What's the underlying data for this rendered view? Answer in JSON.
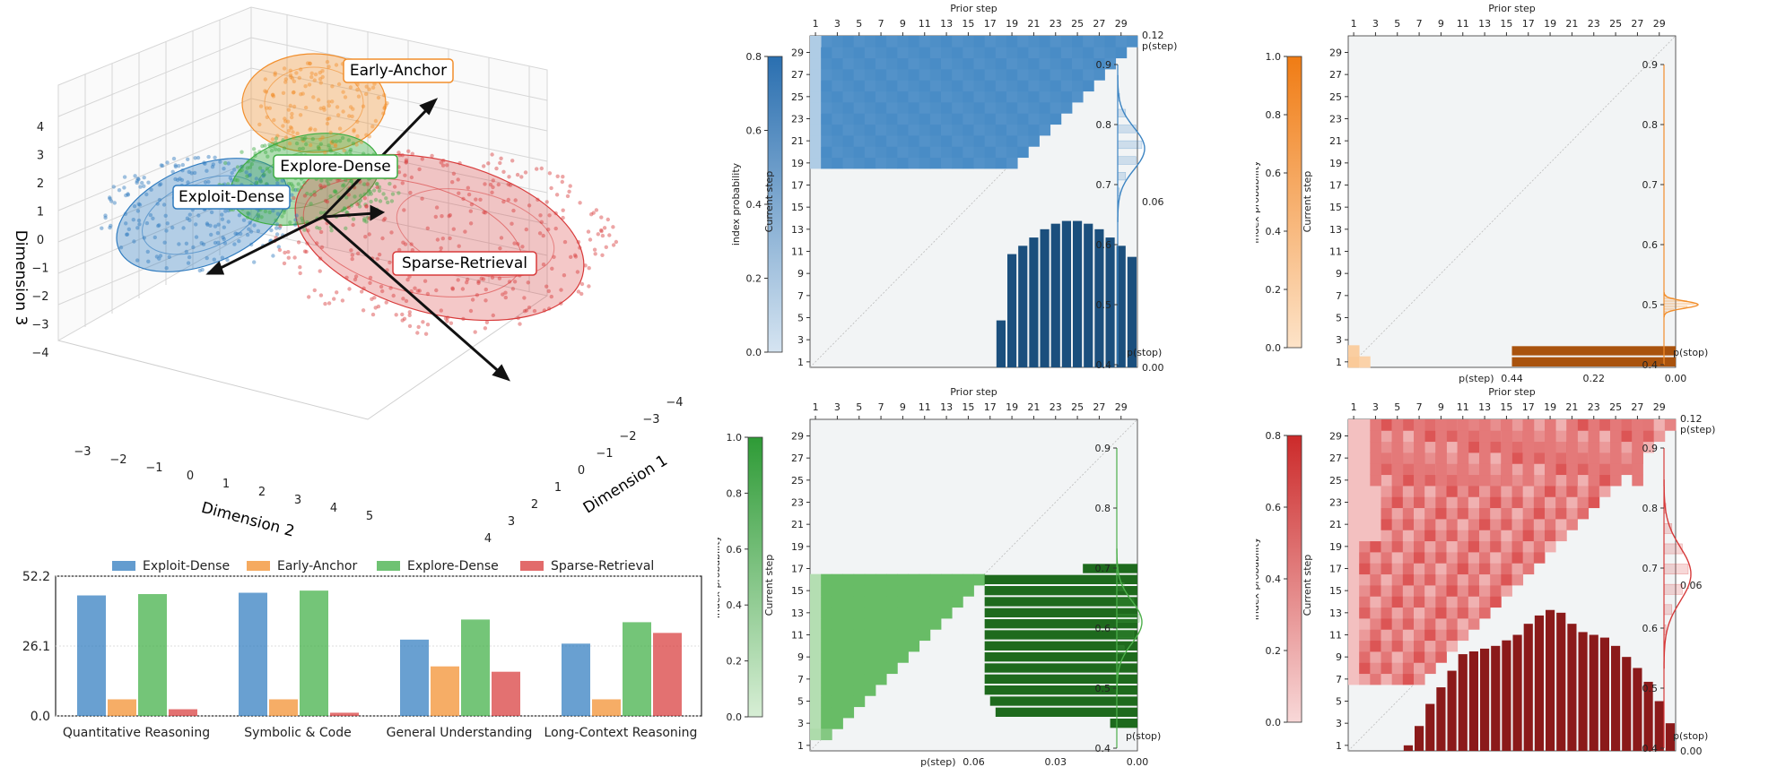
{
  "palette": {
    "exploit": "#2f7bbf",
    "early": "#f28e2b",
    "explore": "#3fae44",
    "sparse": "#d83a3a",
    "grid_bg": "#f2f4f5"
  },
  "scatter3d": {
    "labels": [
      "Early-Anchor",
      "Explore-Dense",
      "Exploit-Dense",
      "Sparse-Retrieval"
    ],
    "axis1_label": "Dimension 1",
    "axis2_label": "Dimension 2",
    "axis3_label": "Dimension 3",
    "z_ticks": [
      "4",
      "3",
      "2",
      "1",
      "0",
      "−1",
      "−2",
      "−3",
      "−4"
    ],
    "x2_ticks": [
      "−3",
      "−2",
      "−1",
      "0",
      "1",
      "2",
      "3",
      "4",
      "5"
    ],
    "x1_ticks": [
      "−4",
      "−3",
      "−2",
      "−1",
      "0",
      "1",
      "2",
      "3",
      "4"
    ]
  },
  "chart_data": [
    {
      "type": "bar",
      "legend": [
        "Exploit-Dense",
        "Early-Anchor",
        "Explore-Dense",
        "Sparse-Retrieval"
      ],
      "categories": [
        "Quantitative Reasoning",
        "Symbolic & Code",
        "General Understanding",
        "Long-Context Reasoning"
      ],
      "yticks": [
        "52.2",
        "26.1",
        "0.0"
      ],
      "ylim": [
        0,
        52.2
      ],
      "series": [
        {
          "name": "Exploit-Dense",
          "values": [
            45.0,
            46.0,
            28.5,
            27.0
          ]
        },
        {
          "name": "Early-Anchor",
          "values": [
            6.2,
            6.2,
            18.5,
            6.2
          ]
        },
        {
          "name": "Explore-Dense",
          "values": [
            45.5,
            46.8,
            36.0,
            35.0
          ]
        },
        {
          "name": "Sparse-Retrieval",
          "values": [
            2.5,
            1.2,
            16.5,
            31.0
          ]
        }
      ]
    },
    {
      "type": "heatmap",
      "cluster": "Exploit-Dense",
      "top_label": "Prior step",
      "left_label": "Current step",
      "colorbar_label": "index probability",
      "colorbar_ticks": [
        "0.8",
        "0.6",
        "0.4",
        "0.2",
        "0.0"
      ],
      "top_ticks": [
        "1",
        "3",
        "5",
        "7",
        "9",
        "11",
        "13",
        "15",
        "17",
        "19",
        "21",
        "23",
        "25",
        "27",
        "29"
      ],
      "left_ticks": [
        "29",
        "27",
        "25",
        "23",
        "21",
        "19",
        "17",
        "15",
        "13",
        "11",
        "9",
        "7",
        "5",
        "3",
        "1"
      ],
      "right_ticks": [
        "0.12",
        "p(step)",
        "0.06",
        "0.00"
      ],
      "pstep_bars": [
        0,
        0,
        0,
        0,
        0,
        0,
        0,
        0,
        0,
        0,
        0,
        0,
        0,
        0,
        0,
        0,
        0,
        0.017,
        0.041,
        0.044,
        0.047,
        0.05,
        0.052,
        0.053,
        0.053,
        0.052,
        0.05,
        0.047,
        0.044,
        0.04
      ],
      "hist_ticks": [
        "0.9",
        "0.8",
        "0.7",
        "0.6",
        "0.5",
        "0.4"
      ],
      "hist_label": "p(stop)"
    },
    {
      "type": "heatmap",
      "cluster": "Early-Anchor",
      "top_label": "Prior step",
      "left_label": "Current step",
      "colorbar_label": "index probability",
      "colorbar_ticks": [
        "1.0",
        "0.8",
        "0.6",
        "0.4",
        "0.2",
        "0.0"
      ],
      "top_ticks": [
        "1",
        "3",
        "5",
        "7",
        "9",
        "11",
        "13",
        "15",
        "17",
        "19",
        "21",
        "23",
        "25",
        "27",
        "29"
      ],
      "left_ticks": [
        "29",
        "27",
        "25",
        "23",
        "21",
        "19",
        "17",
        "15",
        "13",
        "11",
        "9",
        "7",
        "5",
        "3",
        "1"
      ],
      "bottom_ticks": [
        "p(step)",
        "0.44",
        "0.22",
        "0.00"
      ],
      "pstep_bars": [
        0.44,
        0.44
      ],
      "hist_ticks": [
        "0.9",
        "0.8",
        "0.7",
        "0.6",
        "0.5",
        "0.4"
      ],
      "hist_label": "p(stop)"
    },
    {
      "type": "heatmap",
      "cluster": "Explore-Dense",
      "top_label": "Prior step",
      "left_label": "Current step",
      "colorbar_label": "index probability",
      "colorbar_ticks": [
        "1.0",
        "0.8",
        "0.6",
        "0.4",
        "0.2",
        "0.0"
      ],
      "top_ticks": [
        "1",
        "3",
        "5",
        "7",
        "9",
        "11",
        "13",
        "15",
        "17",
        "19",
        "21",
        "23",
        "25",
        "27",
        "29"
      ],
      "left_ticks": [
        "29",
        "27",
        "25",
        "23",
        "21",
        "19",
        "17",
        "15",
        "13",
        "11",
        "9",
        "7",
        "5",
        "3",
        "1"
      ],
      "bottom_ticks": [
        "p(step)",
        "0.06",
        "0.03",
        "0.00"
      ],
      "pstep_bars": [
        0,
        0,
        0.005,
        0.026,
        0.027,
        0.028,
        0.028,
        0.028,
        0.028,
        0.028,
        0.028,
        0.028,
        0.028,
        0.028,
        0.028,
        0.028,
        0.01
      ],
      "hist_ticks": [
        "0.9",
        "0.8",
        "0.7",
        "0.6",
        "0.5",
        "0.4"
      ],
      "hist_label": "p(stop)"
    },
    {
      "type": "heatmap",
      "cluster": "Sparse-Retrieval",
      "top_label": "Prior step",
      "left_label": "Current step",
      "colorbar_label": "index probability",
      "colorbar_ticks": [
        "0.8",
        "0.6",
        "0.4",
        "0.2",
        "0.0"
      ],
      "top_ticks": [
        "1",
        "3",
        "5",
        "7",
        "9",
        "11",
        "13",
        "15",
        "17",
        "19",
        "21",
        "23",
        "25",
        "27",
        "29"
      ],
      "left_ticks": [
        "29",
        "27",
        "25",
        "23",
        "21",
        "19",
        "17",
        "15",
        "13",
        "11",
        "9",
        "7",
        "5",
        "3",
        "1"
      ],
      "right_ticks": [
        "0.12",
        "p(step)",
        "0.06",
        "0.00"
      ],
      "pstep_bars": [
        0,
        0,
        0,
        0,
        0,
        0.002,
        0.009,
        0.017,
        0.023,
        0.029,
        0.035,
        0.036,
        0.037,
        0.038,
        0.04,
        0.042,
        0.046,
        0.049,
        0.051,
        0.05,
        0.046,
        0.043,
        0.042,
        0.041,
        0.038,
        0.034,
        0.03,
        0.025,
        0.018,
        0.01
      ],
      "hist_ticks": [
        "0.9",
        "0.8",
        "0.7",
        "0.6",
        "0.5",
        "0.4"
      ],
      "hist_label": "p(stop)"
    }
  ]
}
